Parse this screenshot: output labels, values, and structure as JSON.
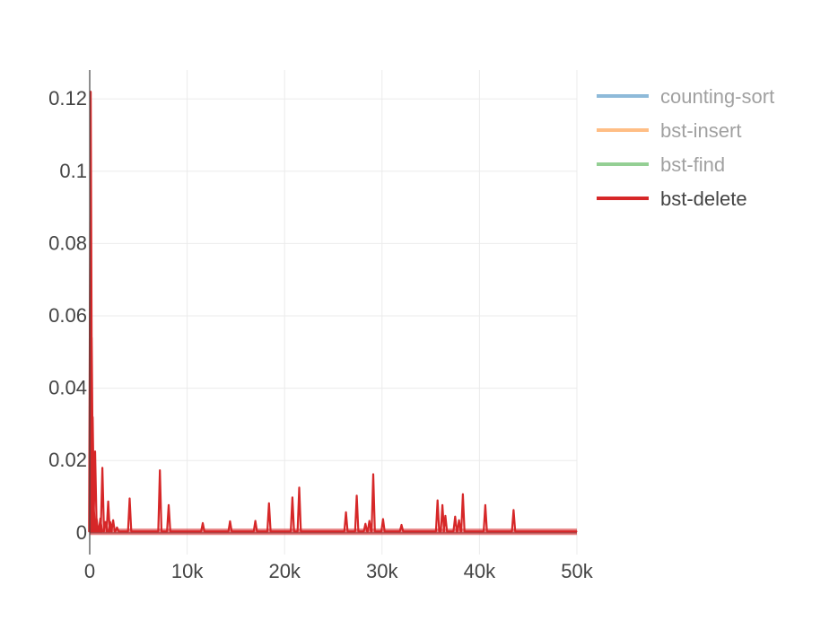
{
  "chart_data": {
    "type": "line",
    "title": "",
    "xlabel": "",
    "ylabel": "",
    "xlim": [
      0,
      50000
    ],
    "ylim": [
      -0.006,
      0.128
    ],
    "grid": true,
    "legend_position": "top-right",
    "xticks": [
      {
        "value": 0,
        "label": "0"
      },
      {
        "value": 10000,
        "label": "10k"
      },
      {
        "value": 20000,
        "label": "20k"
      },
      {
        "value": 30000,
        "label": "30k"
      },
      {
        "value": 40000,
        "label": "40k"
      },
      {
        "value": 50000,
        "label": "50k"
      }
    ],
    "yticks": [
      {
        "value": 0,
        "label": "0"
      },
      {
        "value": 0.02,
        "label": "0.02"
      },
      {
        "value": 0.04,
        "label": "0.04"
      },
      {
        "value": 0.06,
        "label": "0.06"
      },
      {
        "value": 0.08,
        "label": "0.08"
      },
      {
        "value": 0.1,
        "label": "0.1"
      },
      {
        "value": 0.12,
        "label": "0.12"
      }
    ],
    "baseline": 0.0004,
    "series": [
      {
        "name": "counting-sort",
        "color": "#1f77b4",
        "visible": false,
        "x": [],
        "y": []
      },
      {
        "name": "bst-insert",
        "color": "#ff7f0e",
        "visible": false,
        "x": [],
        "y": []
      },
      {
        "name": "bst-find",
        "color": "#2ca02c",
        "visible": false,
        "x": [],
        "y": []
      },
      {
        "name": "bst-delete",
        "color": "#d62728",
        "visible": true,
        "x": [
          0,
          100,
          200,
          300,
          400,
          550,
          700,
          900,
          1100,
          1300,
          1600,
          1900,
          2100,
          2400,
          2800,
          4100,
          7200,
          8100,
          11600,
          14400,
          17000,
          18400,
          20800,
          21500,
          26300,
          27400,
          28300,
          28700,
          29100,
          30100,
          32000,
          35700,
          36200,
          36500,
          37500,
          37900,
          38300,
          40600,
          43500,
          50000
        ],
        "y": [
          0.0004,
          0.122,
          0.054,
          0.032,
          0.008,
          0.0225,
          0.004,
          0.0015,
          0.004,
          0.018,
          0.003,
          0.0087,
          0.003,
          0.0035,
          0.0015,
          0.0095,
          0.0173,
          0.0077,
          0.0027,
          0.0032,
          0.0033,
          0.0082,
          0.0098,
          0.0125,
          0.0057,
          0.0103,
          0.0025,
          0.0033,
          0.0162,
          0.0038,
          0.0022,
          0.009,
          0.0077,
          0.0047,
          0.0045,
          0.0035,
          0.0107,
          0.0077,
          0.0063,
          0.0004
        ]
      }
    ]
  }
}
